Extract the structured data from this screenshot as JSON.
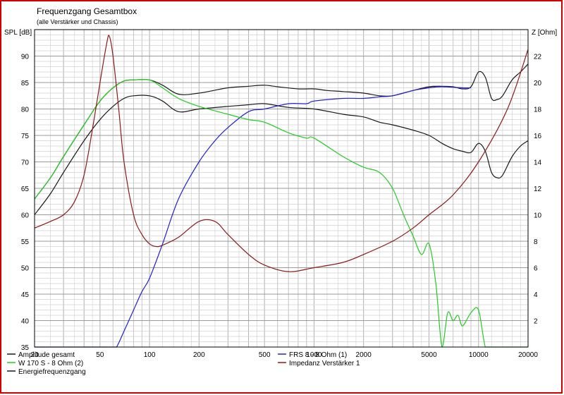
{
  "chart_data": {
    "type": "line",
    "title": "Frequenzgang Gesamtbox",
    "subtitle": "(alle Verstärker und Chassis)",
    "ylabel_left": "SPL [dB]",
    "ylabel_right": "Z [Ohm]",
    "x_scale": "log",
    "xlim": [
      20,
      20000
    ],
    "ylim_left": [
      35,
      95
    ],
    "ylim_right": [
      0,
      24
    ],
    "grid": true,
    "x_ticks": [
      20,
      50,
      100,
      200,
      500,
      1000,
      2000,
      5000,
      10000,
      20000
    ],
    "x_tick_labels": [
      "20",
      "50",
      "100",
      "200",
      "500",
      "1000",
      "2000",
      "5000",
      "10000",
      "20000"
    ],
    "y_left_ticks": [
      35,
      40,
      45,
      50,
      55,
      60,
      65,
      70,
      75,
      80,
      85,
      90
    ],
    "y_right_ticks": [
      2,
      4,
      6,
      8,
      10,
      12,
      14,
      16,
      18,
      20,
      22
    ],
    "legend": [
      {
        "label": "Amplitude gesamt",
        "color": "#1a1a1a",
        "col": 0,
        "row": 0
      },
      {
        "label": "FRS 8 - 8 Ohm (1)",
        "color": "#2222cc",
        "col": 1,
        "row": 0
      },
      {
        "label": "W 170 S - 8 Ohm (2)",
        "color": "#22cc22",
        "col": 0,
        "row": 1
      },
      {
        "label": "Impedanz Verstärker 1",
        "color": "#8b1a1a",
        "col": 1,
        "row": 1
      },
      {
        "label": "Energiefrequenzgang",
        "color": "#1a1a1a",
        "col": 0,
        "row": 2
      }
    ],
    "series": [
      {
        "name": "Amplitude gesamt",
        "axis": "left",
        "color": "#1a1a1a",
        "x": [
          20,
          25,
          30,
          40,
          50,
          60,
          70,
          80,
          100,
          120,
          150,
          200,
          300,
          400,
          500,
          600,
          800,
          1000,
          1200,
          1500,
          2000,
          2500,
          3000,
          4000,
          5000,
          6000,
          7000,
          8000,
          9000,
          10000,
          11000,
          12000,
          13000,
          14000,
          16000,
          18000,
          20000
        ],
        "y": [
          63,
          67,
          71,
          77,
          81.5,
          84,
          85.3,
          85.5,
          85.5,
          84.5,
          82.8,
          83,
          84,
          84.3,
          84.5,
          84.2,
          83.8,
          83.8,
          83.5,
          83.3,
          83,
          82.5,
          82.5,
          83.5,
          84.2,
          84.3,
          84.2,
          83.8,
          84.2,
          87,
          86,
          82,
          81.8,
          82.5,
          85.5,
          87,
          88.5
        ]
      },
      {
        "name": "Energiefrequenzgang",
        "axis": "left",
        "color": "#1a1a1a",
        "x": [
          20,
          25,
          30,
          40,
          50,
          60,
          70,
          80,
          100,
          120,
          150,
          200,
          300,
          400,
          500,
          700,
          1000,
          1500,
          2000,
          2500,
          3000,
          4000,
          5000,
          6000,
          7000,
          8000,
          9000,
          10000,
          11000,
          12000,
          13000,
          14000,
          16000,
          18000,
          20000
        ],
        "y": [
          60,
          64,
          68,
          74,
          78,
          80.5,
          82,
          82.5,
          82.5,
          81.5,
          79.5,
          80,
          80.5,
          80.8,
          81,
          80.3,
          80,
          79,
          78.5,
          77.5,
          77,
          76,
          75,
          73.5,
          72.5,
          72,
          71.8,
          73.5,
          72,
          68,
          67,
          67.5,
          71,
          73,
          74
        ]
      },
      {
        "name": "FRS 8 - 8 Ohm (1)",
        "axis": "left",
        "color": "#2222cc",
        "x": [
          20,
          40,
          60,
          63,
          70,
          80,
          90,
          100,
          120,
          150,
          200,
          250,
          300,
          400,
          500,
          700,
          900,
          1000,
          1500,
          2000,
          2500,
          3000,
          4000,
          5000,
          6000,
          8000,
          9000
        ],
        "y": [
          35,
          35,
          35,
          35,
          38,
          42,
          45.5,
          48,
          54.5,
          63,
          70,
          74,
          76.5,
          79.5,
          80,
          81,
          81,
          81.5,
          82,
          82,
          82.3,
          82.5,
          83.5,
          84,
          84.2,
          84,
          84
        ]
      },
      {
        "name": "W 170 S - 8 Ohm (2)",
        "axis": "left",
        "color": "#22cc22",
        "x": [
          20,
          25,
          30,
          40,
          50,
          60,
          70,
          80,
          100,
          120,
          150,
          200,
          300,
          400,
          500,
          700,
          900,
          1000,
          1500,
          2000,
          2500,
          3000,
          3500,
          4000,
          4500,
          5000,
          5500,
          6000,
          6500,
          7000,
          7500,
          8000,
          9000,
          10000,
          11000,
          12000,
          14000,
          20000
        ],
        "y": [
          63,
          67,
          71,
          77,
          81.5,
          84,
          85.3,
          85.5,
          85.5,
          84,
          82,
          80.5,
          79,
          78,
          77.5,
          75.5,
          74.5,
          74.5,
          71,
          69,
          68,
          65,
          60,
          56,
          52.5,
          54.5,
          47,
          35,
          41.5,
          40,
          41,
          39,
          41.5,
          42,
          35,
          35,
          35,
          35
        ]
      },
      {
        "name": "Impedanz Verstärker 1",
        "axis": "right",
        "color": "#8b1a1a",
        "x": [
          20,
          25,
          30,
          35,
          40,
          45,
          50,
          55,
          57,
          60,
          65,
          70,
          80,
          90,
          100,
          110,
          120,
          150,
          200,
          250,
          300,
          400,
          500,
          700,
          1000,
          1500,
          2000,
          3000,
          4000,
          5000,
          7000,
          10000,
          15000,
          20000
        ],
        "y": [
          9,
          9.5,
          10,
          11,
          13,
          16.5,
          20,
          23,
          23.5,
          22,
          18,
          14,
          10,
          8.5,
          7.8,
          7.6,
          7.7,
          8.3,
          9.5,
          9.5,
          8.5,
          7,
          6.2,
          5.7,
          6,
          6.4,
          7,
          8,
          9,
          10,
          11.5,
          14,
          18,
          22.5
        ]
      }
    ]
  }
}
